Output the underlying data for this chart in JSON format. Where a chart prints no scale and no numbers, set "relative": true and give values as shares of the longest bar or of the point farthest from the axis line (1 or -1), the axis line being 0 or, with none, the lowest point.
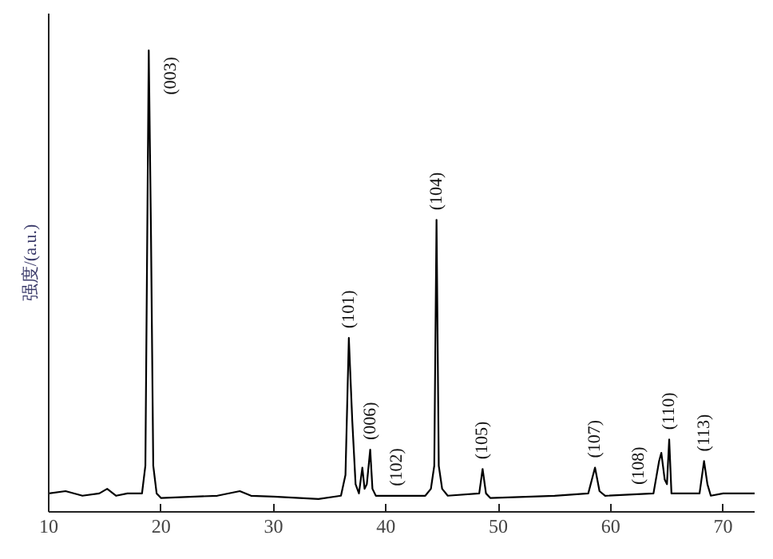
{
  "chart_data": {
    "type": "line",
    "relative": true,
    "ylabel": "强度/(a.u.)",
    "xlim": [
      10,
      72.8
    ],
    "xticks": [
      10,
      20,
      30,
      40,
      50,
      60,
      70
    ],
    "grid": false,
    "marker": "none",
    "line_style": "solid",
    "series": [
      {
        "color": "#000000",
        "x": [
          10,
          11.5,
          13,
          14.5,
          15.2,
          16,
          17,
          18.3,
          18.6,
          18.9,
          19.1,
          19.3,
          19.6,
          20,
          25,
          27,
          28,
          30,
          34,
          36,
          36.4,
          36.7,
          37.0,
          37.3,
          37.6,
          37.9,
          38.1,
          38.3,
          38.6,
          38.8,
          39.1,
          43.5,
          44,
          44.3,
          44.5,
          44.7,
          45,
          45.5,
          48.3,
          48.6,
          48.9,
          49.3,
          55,
          58,
          58.6,
          59.0,
          59.5,
          63.8,
          64.3,
          64.5,
          64.8,
          65.0,
          65.2,
          65.4,
          67.9,
          68.3,
          68.6,
          68.9,
          70,
          72.8
        ],
        "values": [
          0.04,
          0.045,
          0.035,
          0.04,
          0.05,
          0.035,
          0.04,
          0.04,
          0.1,
          1.0,
          0.6,
          0.1,
          0.04,
          0.03,
          0.035,
          0.045,
          0.035,
          0.033,
          0.028,
          0.035,
          0.08,
          0.377,
          0.2,
          0.06,
          0.04,
          0.096,
          0.05,
          0.06,
          0.135,
          0.05,
          0.035,
          0.035,
          0.05,
          0.1,
          0.633,
          0.1,
          0.05,
          0.035,
          0.04,
          0.093,
          0.04,
          0.03,
          0.035,
          0.04,
          0.096,
          0.045,
          0.035,
          0.04,
          0.11,
          0.128,
          0.07,
          0.06,
          0.157,
          0.04,
          0.04,
          0.11,
          0.06,
          0.035,
          0.04,
          0.04
        ]
      }
    ],
    "annotations": [
      {
        "text": "(003)",
        "x": 18.9,
        "y": 1.0
      },
      {
        "text": "(101)",
        "x": 36.7,
        "y": 0.377
      },
      {
        "text": "(006)",
        "x": 38.6,
        "y": 0.135
      },
      {
        "text": "(102)",
        "x": 41.0,
        "y": 0.035
      },
      {
        "text": "(104)",
        "x": 44.5,
        "y": 0.633
      },
      {
        "text": "(105)",
        "x": 48.6,
        "y": 0.093
      },
      {
        "text": "(107)",
        "x": 58.6,
        "y": 0.096
      },
      {
        "text": "(108)",
        "x": 62.5,
        "y": 0.038
      },
      {
        "text": "(110)",
        "x": 65.2,
        "y": 0.157
      },
      {
        "text": "(113)",
        "x": 68.3,
        "y": 0.11
      }
    ]
  }
}
